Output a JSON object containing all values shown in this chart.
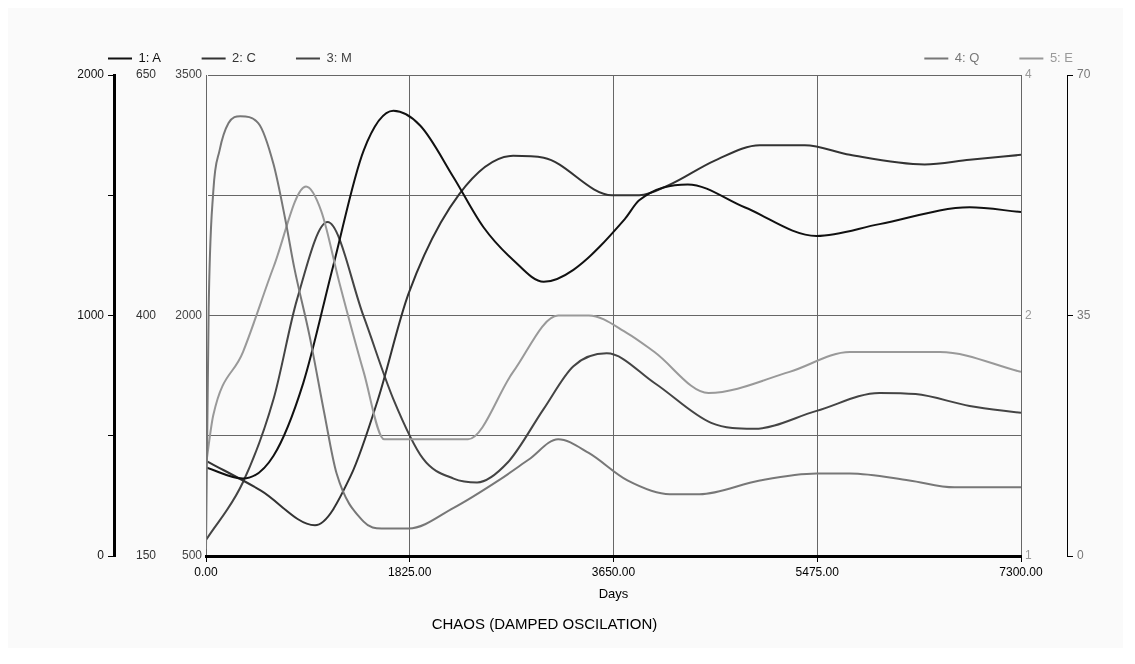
{
  "chart_data": [
    {
      "type": "line",
      "title": "CHAOS (DAMPED OSCILATION)",
      "xlabel": "Days",
      "legend": "top left",
      "grid": true,
      "marker": "none",
      "line_style": "solid",
      "xlim": [
        0,
        7300
      ],
      "xticks": [
        {
          "value": 0,
          "label": "0.00"
        },
        {
          "value": 1825,
          "label": "1825.00"
        },
        {
          "value": 3650,
          "label": "3650.00"
        },
        {
          "value": 5475,
          "label": "5475.00"
        },
        {
          "value": 7300,
          "label": "7300.00"
        }
      ],
      "ylim": [
        0,
        2000
      ],
      "yticks": [
        0,
        {
          "value": 500,
          "label": null
        },
        1000,
        {
          "value": 1500,
          "label": null
        },
        2000
      ],
      "y2lim": [
        150,
        650
      ],
      "y2ticks": [
        150,
        400,
        650
      ],
      "y3lim": [
        500,
        3500
      ],
      "y3ticks": [
        500,
        2000,
        3500
      ],
      "series": [
        {
          "name": "1: A",
          "color": "#111111",
          "x": [
            0,
            331,
            605,
            871,
            1137,
            1412,
            1678,
            1920,
            2218,
            2484,
            2751,
            3025,
            3291,
            3751,
            3880,
            4315,
            4824,
            5469,
            6033,
            6840,
            7300
          ],
          "values": [
            368,
            322,
            417,
            719,
            1202,
            1686,
            1851,
            1789,
            1574,
            1368,
            1231,
            1140,
            1190,
            1401,
            1479,
            1545,
            1450,
            1331,
            1380,
            1450,
            1430
          ]
        },
        {
          "name": "2: C",
          "color": "#333333",
          "axis": "y2",
          "x": [
            0,
            492,
            976,
            1299,
            1541,
            1815,
            2267,
            2751,
            3025,
            3638,
            3880,
            4154,
            4557,
            4961,
            5364,
            5767,
            6437,
            6840,
            7300
          ],
          "values": [
            249,
            218,
            182,
            234,
            313,
            423,
            526,
            566,
            564,
            525,
            525,
            536,
            561,
            577,
            577,
            567,
            557,
            562,
            567
          ]
        },
        {
          "name": "3: M",
          "color": "#444444",
          "axis": "y3",
          "x": [
            0,
            331,
            605,
            815,
            1089,
            1412,
            1678,
            1944,
            2218,
            2428,
            2702,
            3025,
            3291,
            3589,
            4017,
            4525,
            4904,
            5469,
            6033,
            6356,
            6840,
            7300
          ],
          "values": [
            600,
            960,
            1479,
            2099,
            2583,
            1994,
            1479,
            1107,
            983,
            959,
            1083,
            1418,
            1684,
            1764,
            1579,
            1330,
            1293,
            1405,
            1517,
            1510,
            1436,
            1393
          ]
        }
      ]
    },
    {
      "type": "line",
      "legend": "top right",
      "marker": "none",
      "line_style": "solid",
      "log": "y2",
      "tick_labels": "y",
      "xlim": [
        0,
        7300
      ],
      "xticks": [
        0,
        1825,
        3650,
        5475,
        7300
      ],
      "ylim": [
        0,
        70
      ],
      "yticks": [
        0,
        35,
        70
      ],
      "y2lim": [
        1,
        4
      ],
      "y2ticks": [
        1,
        2,
        4
      ],
      "series": [
        {
          "name": "4: Q",
          "color": "#777777",
          "x": [
            0,
            24,
            65,
            121,
            202,
            307,
            468,
            605,
            710,
            790,
            928,
            1057,
            1170,
            1412,
            1573,
            1815,
            2218,
            2621,
            2888,
            3154,
            3428,
            3775,
            4154,
            4420,
            4961,
            5469,
            5767,
            6300,
            6703,
            7300
          ],
          "values": [
            1,
            36,
            53,
            59,
            63,
            64,
            63,
            57,
            49,
            42,
            32,
            21,
            12,
            5,
            4,
            4,
            7,
            11,
            14,
            17,
            15,
            11,
            9,
            9,
            11,
            12,
            12,
            11,
            10,
            10
          ]
        },
        {
          "name": "5: E",
          "color": "#999999",
          "axis": "y2",
          "x": [
            0,
            65,
            331,
            605,
            896,
            1033,
            1194,
            1412,
            1597,
            1944,
            2347,
            2751,
            3154,
            3428,
            3775,
            4017,
            4501,
            5227,
            5767,
            6033,
            6574,
            7300
          ],
          "values": [
            1.3,
            1.5,
            1.8,
            2.3,
            2.9,
            2.7,
            2.2,
            1.7,
            1.4,
            1.4,
            1.4,
            1.7,
            2.0,
            2.0,
            1.9,
            1.8,
            1.6,
            1.7,
            1.8,
            1.8,
            1.8,
            1.7
          ]
        }
      ]
    }
  ]
}
